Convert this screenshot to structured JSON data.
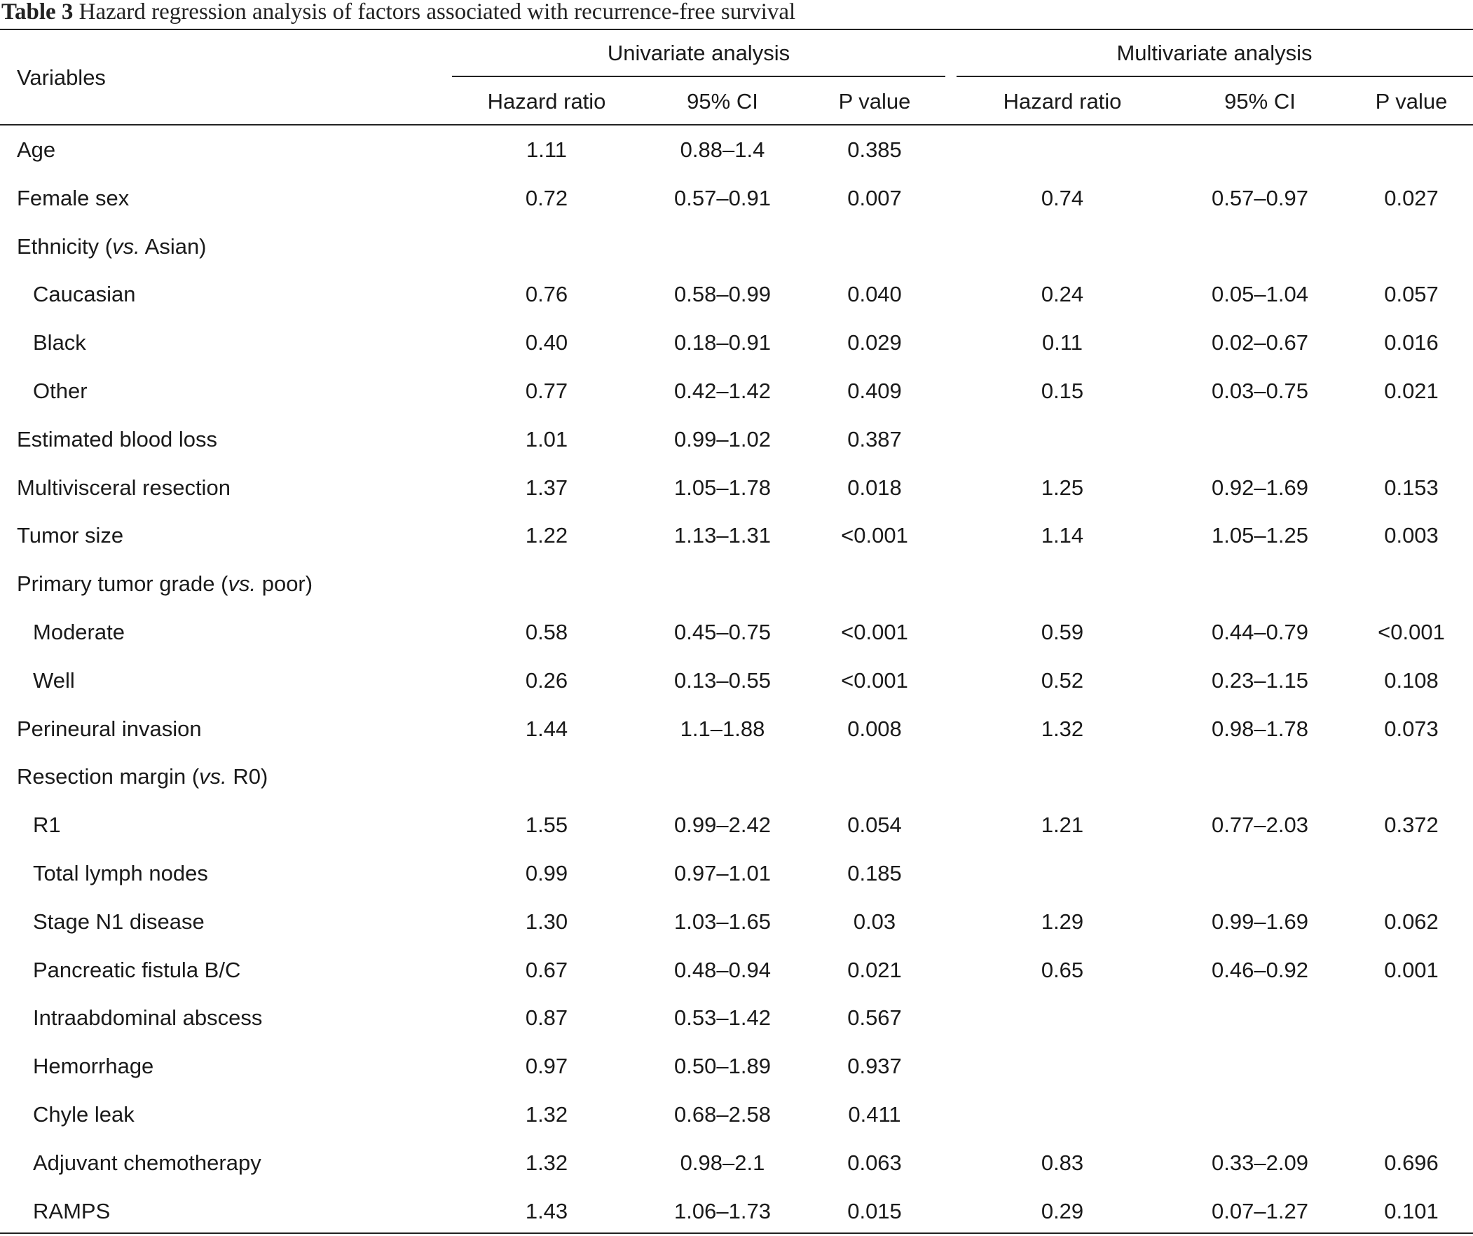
{
  "caption": {
    "label": "Table 3",
    "text": "Hazard regression analysis of factors associated with recurrence-free survival"
  },
  "header": {
    "variables": "Variables",
    "univariate": "Univariate analysis",
    "multivariate": "Multivariate analysis",
    "columns": [
      "Hazard ratio",
      "95% CI",
      "P value",
      "Hazard ratio",
      "95% CI",
      "P value"
    ]
  },
  "rows": [
    {
      "variable": "Age",
      "indent": false,
      "values": [
        "1.11",
        "0.88–1.4",
        "0.385",
        "",
        "",
        ""
      ]
    },
    {
      "variable": "Female sex",
      "indent": false,
      "values": [
        "0.72",
        "0.57–0.91",
        "0.007",
        "0.74",
        "0.57–0.97",
        "0.027"
      ]
    },
    {
      "variable": "Ethnicity (",
      "italic": "vs.",
      "suffix": " Asian)",
      "indent": false,
      "values": [
        "",
        "",
        "",
        "",
        "",
        ""
      ]
    },
    {
      "variable": "Caucasian",
      "indent": true,
      "values": [
        "0.76",
        "0.58–0.99",
        "0.040",
        "0.24",
        "0.05–1.04",
        "0.057"
      ]
    },
    {
      "variable": "Black",
      "indent": true,
      "values": [
        "0.40",
        "0.18–0.91",
        "0.029",
        "0.11",
        "0.02–0.67",
        "0.016"
      ]
    },
    {
      "variable": "Other",
      "indent": true,
      "values": [
        "0.77",
        "0.42–1.42",
        "0.409",
        "0.15",
        "0.03–0.75",
        "0.021"
      ]
    },
    {
      "variable": "Estimated blood loss",
      "indent": false,
      "values": [
        "1.01",
        "0.99–1.02",
        "0.387",
        "",
        "",
        ""
      ]
    },
    {
      "variable": "Multivisceral resection",
      "indent": false,
      "values": [
        "1.37",
        "1.05–1.78",
        "0.018",
        "1.25",
        "0.92–1.69",
        "0.153"
      ]
    },
    {
      "variable": "Tumor size",
      "indent": false,
      "values": [
        "1.22",
        "1.13–1.31",
        "<0.001",
        "1.14",
        "1.05–1.25",
        "0.003"
      ]
    },
    {
      "variable": "Primary tumor grade (",
      "italic": "vs.",
      "suffix": " poor)",
      "indent": false,
      "values": [
        "",
        "",
        "",
        "",
        "",
        ""
      ]
    },
    {
      "variable": "Moderate",
      "indent": true,
      "values": [
        "0.58",
        "0.45–0.75",
        "<0.001",
        "0.59",
        "0.44–0.79",
        "<0.001"
      ]
    },
    {
      "variable": "Well",
      "indent": true,
      "values": [
        "0.26",
        "0.13–0.55",
        "<0.001",
        "0.52",
        "0.23–1.15",
        "0.108"
      ]
    },
    {
      "variable": "Perineural invasion",
      "indent": false,
      "values": [
        "1.44",
        "1.1–1.88",
        "0.008",
        "1.32",
        "0.98–1.78",
        "0.073"
      ]
    },
    {
      "variable": "Resection margin (",
      "italic": "vs.",
      "suffix": " R0)",
      "indent": false,
      "values": [
        "",
        "",
        "",
        "",
        "",
        ""
      ]
    },
    {
      "variable": "R1",
      "indent": true,
      "values": [
        "1.55",
        "0.99–2.42",
        "0.054",
        "1.21",
        "0.77–2.03",
        "0.372"
      ]
    },
    {
      "variable": "Total lymph nodes",
      "indent": true,
      "values": [
        "0.99",
        "0.97–1.01",
        "0.185",
        "",
        "",
        ""
      ]
    },
    {
      "variable": "Stage N1 disease",
      "indent": true,
      "values": [
        "1.30",
        "1.03–1.65",
        "0.03",
        "1.29",
        "0.99–1.69",
        "0.062"
      ]
    },
    {
      "variable": "Pancreatic fistula B/C",
      "indent": true,
      "values": [
        "0.67",
        "0.48–0.94",
        "0.021",
        "0.65",
        "0.46–0.92",
        "0.001"
      ]
    },
    {
      "variable": "Intraabdominal abscess",
      "indent": true,
      "values": [
        "0.87",
        "0.53–1.42",
        "0.567",
        "",
        "",
        ""
      ]
    },
    {
      "variable": "Hemorrhage",
      "indent": true,
      "values": [
        "0.97",
        "0.50–1.89",
        "0.937",
        "",
        "",
        ""
      ]
    },
    {
      "variable": "Chyle leak",
      "indent": true,
      "values": [
        "1.32",
        "0.68–2.58",
        "0.411",
        "",
        "",
        ""
      ]
    },
    {
      "variable": "Adjuvant chemotherapy",
      "indent": true,
      "values": [
        "1.32",
        "0.98–2.1",
        "0.063",
        "0.83",
        "0.33–2.09",
        "0.696"
      ]
    },
    {
      "variable": "RAMPS",
      "indent": true,
      "values": [
        "1.43",
        "1.06–1.73",
        "0.015",
        "0.29",
        "0.07–1.27",
        "0.101"
      ]
    }
  ]
}
